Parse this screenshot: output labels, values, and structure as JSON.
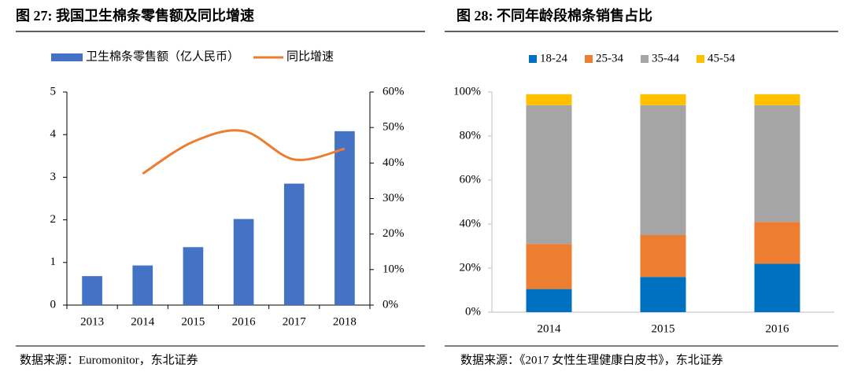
{
  "chart_data": [
    {
      "type": "bar",
      "title": "图 27: 我国卫生棉条零售额及同比增速",
      "categories": [
        "2013",
        "2014",
        "2015",
        "2016",
        "2017",
        "2018"
      ],
      "series": [
        {
          "name": "卫生棉条零售额（亿人民币）",
          "color": "#4472c4",
          "values": [
            0.68,
            0.93,
            1.36,
            2.02,
            2.85,
            4.08
          ]
        },
        {
          "name": "同比增速",
          "type": "line",
          "axis": "y2",
          "color": "#ed7d31",
          "values": [
            null,
            37,
            46,
            49,
            41,
            44
          ]
        }
      ],
      "ylim": [
        0,
        5
      ],
      "yticks": [
        0,
        1,
        2,
        3,
        4,
        5
      ],
      "y2lim": [
        0,
        60
      ],
      "y2ticks": [
        {
          "value": 0,
          "label": "0%"
        },
        {
          "value": 10,
          "label": "10%"
        },
        {
          "value": 20,
          "label": "20%"
        },
        {
          "value": 30,
          "label": "30%"
        },
        {
          "value": 40,
          "label": "40%"
        },
        {
          "value": 50,
          "label": "50%"
        },
        {
          "value": 60,
          "label": "60%"
        }
      ],
      "legend": "top",
      "source": "数据来源：Euromonitor，东北证券"
    },
    {
      "type": "stacked_bar",
      "title": "图 28: 不同年龄段棉条销售占比",
      "categories": [
        "2014",
        "2015",
        "2016"
      ],
      "series": [
        {
          "name": "18-24",
          "color": "#0070c0",
          "values": [
            10.5,
            16,
            22
          ]
        },
        {
          "name": "25-34",
          "color": "#ed7d31",
          "values": [
            20.5,
            19,
            19
          ]
        },
        {
          "name": "35-44",
          "color": "#a5a5a5",
          "values": [
            63,
            59,
            53
          ]
        },
        {
          "name": "45-54",
          "color": "#ffc000",
          "values": [
            5,
            5,
            5
          ]
        }
      ],
      "ylim": [
        0,
        100
      ],
      "yticks": [
        {
          "value": 0,
          "label": "0%"
        },
        {
          "value": 20,
          "label": "20%"
        },
        {
          "value": 40,
          "label": "40%"
        },
        {
          "value": 60,
          "label": "60%"
        },
        {
          "value": 80,
          "label": "80%"
        },
        {
          "value": 100,
          "label": "100%"
        }
      ],
      "legend": "top",
      "source": "数据来源：《2017 女性生理健康白皮书》，东北证券"
    }
  ]
}
